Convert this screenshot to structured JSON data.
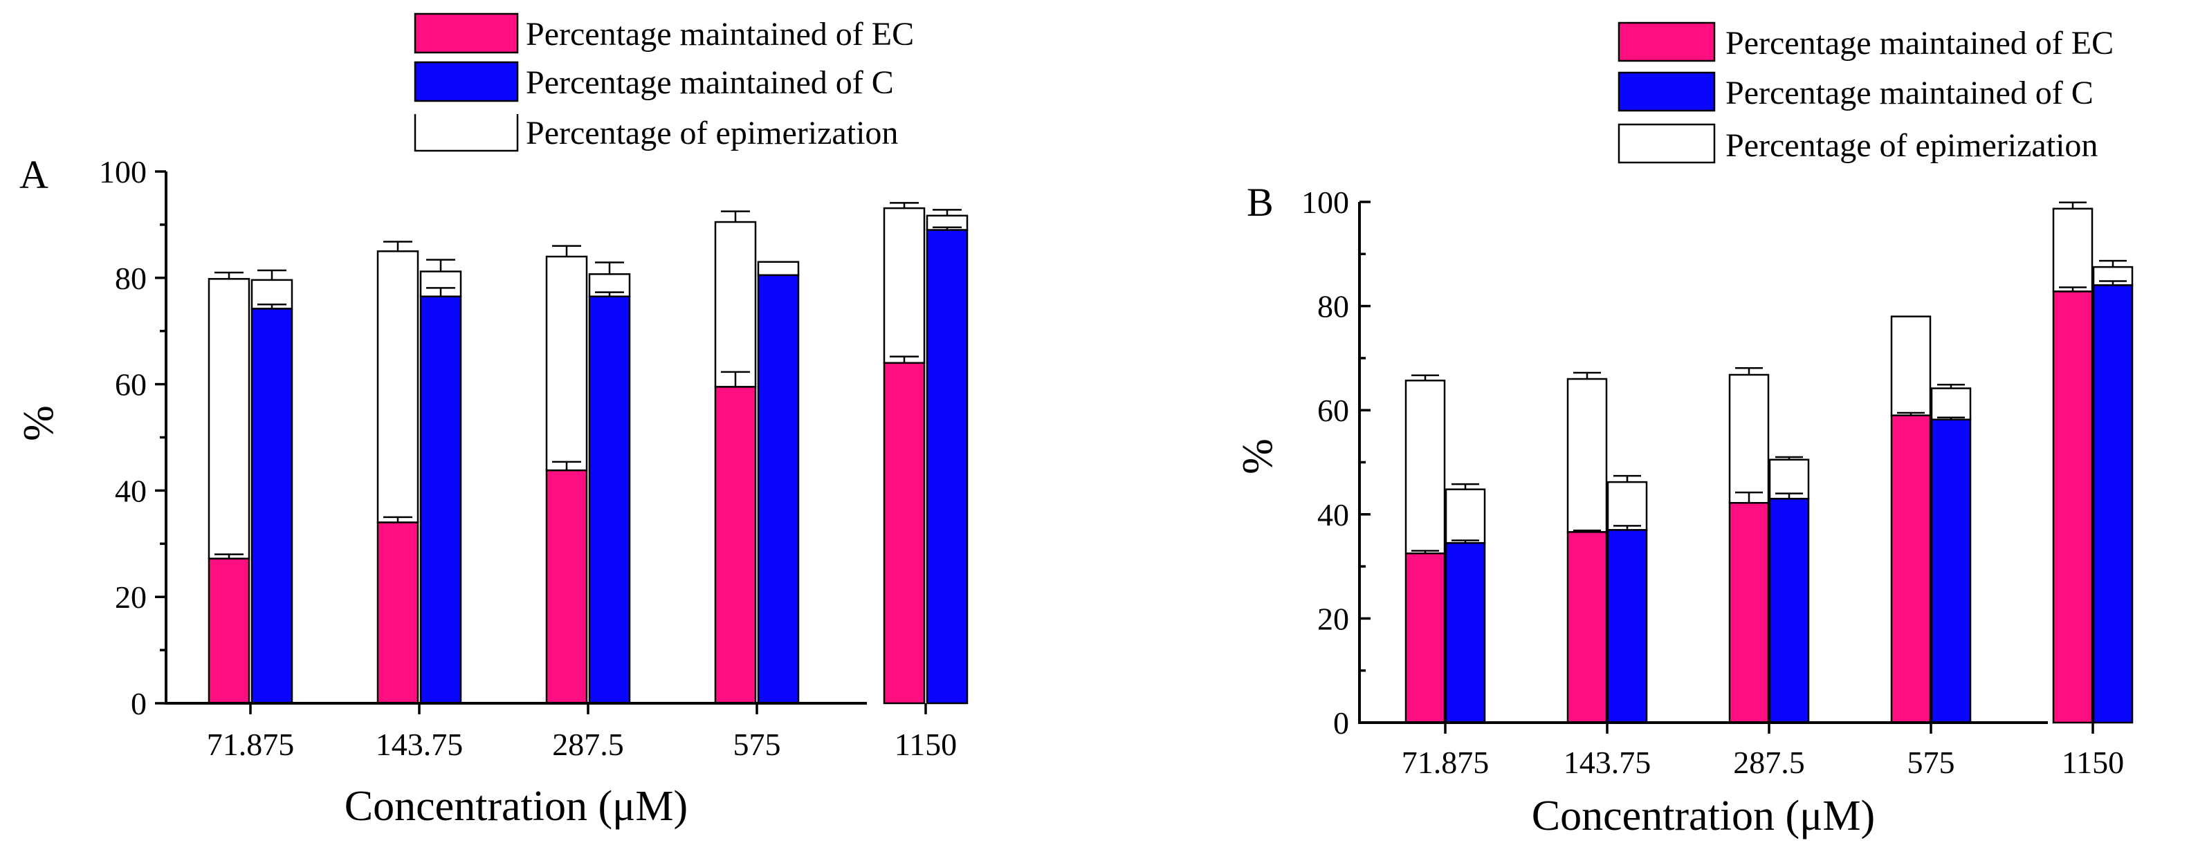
{
  "chart_data": [
    {
      "type": "bar",
      "panel_label": "A",
      "layout": "stacked-grouped",
      "categories": [
        "71.875",
        "143.75",
        "287.5",
        "575",
        "1150"
      ],
      "xlabel": "Concentration (μM)",
      "ylabel": "%",
      "ylim": [
        0,
        100
      ],
      "yticks": [
        "0",
        "20",
        "40",
        "60",
        "80",
        "100"
      ],
      "legend": {
        "placement": "top",
        "entries": [
          "Percentage maintained of EC",
          "Percentage maintained of C",
          "Percentage of epimerization"
        ]
      },
      "series": [
        {
          "name": "Percentage maintained of EC",
          "values": [
            27.2,
            34.0,
            43.8,
            59.5,
            64.0
          ],
          "errors": [
            0.8,
            1.0,
            1.6,
            2.8,
            1.2
          ]
        },
        {
          "name": "Percentage maintained of C",
          "values": [
            74.2,
            76.5,
            76.5,
            80.5,
            89.0
          ],
          "errors": [
            0.8,
            1.6,
            0.8,
            0.0,
            0.5
          ]
        },
        {
          "name": "Percentage of epimerization (EC)",
          "values": [
            52.6,
            51.0,
            40.2,
            31.0,
            29.1
          ],
          "errors": [
            1.2,
            1.8,
            2.0,
            2.0,
            1.0
          ]
        },
        {
          "name": "Percentage of epimerization (C)",
          "values": [
            5.4,
            4.7,
            4.2,
            2.5,
            2.7
          ],
          "errors": [
            1.8,
            2.2,
            2.2,
            0.0,
            1.1
          ]
        }
      ],
      "colors": {
        "ec": "#ff0f80",
        "c": "#0a05ff",
        "epi": "#ffffff"
      }
    },
    {
      "type": "bar",
      "panel_label": "B",
      "layout": "stacked-grouped",
      "categories": [
        "71.875",
        "143.75",
        "287.5",
        "575",
        "1150"
      ],
      "xlabel": "Concentration (μM)",
      "ylabel": "%",
      "ylim": [
        0,
        100
      ],
      "yticks": [
        "0",
        "20",
        "40",
        "60",
        "80",
        "100"
      ],
      "legend": {
        "placement": "top-right",
        "entries": [
          "Percentage maintained of EC",
          "Percentage maintained of C",
          "Percentage of epimerization"
        ]
      },
      "series": [
        {
          "name": "Percentage maintained of EC",
          "values": [
            32.5,
            36.6,
            42.2,
            59.0,
            82.8
          ],
          "errors": [
            0.5,
            0.3,
            2.0,
            0.5,
            0.8
          ]
        },
        {
          "name": "Percentage maintained of C",
          "values": [
            34.5,
            37.0,
            43.0,
            58.2,
            84.0
          ],
          "errors": [
            0.5,
            0.8,
            1.0,
            0.4,
            0.8
          ]
        },
        {
          "name": "Percentage of epimerization (EC)",
          "values": [
            33.2,
            29.4,
            24.6,
            19.0,
            15.9
          ],
          "errors": [
            1.0,
            1.2,
            1.3,
            0.0,
            1.2
          ]
        },
        {
          "name": "Percentage of epimerization (C)",
          "values": [
            10.3,
            9.2,
            7.5,
            6.0,
            3.5
          ],
          "errors": [
            1.0,
            1.2,
            0.5,
            0.7,
            1.2
          ]
        }
      ],
      "colors": {
        "ec": "#ff0f80",
        "c": "#0a05ff",
        "epi": "#ffffff"
      }
    }
  ]
}
